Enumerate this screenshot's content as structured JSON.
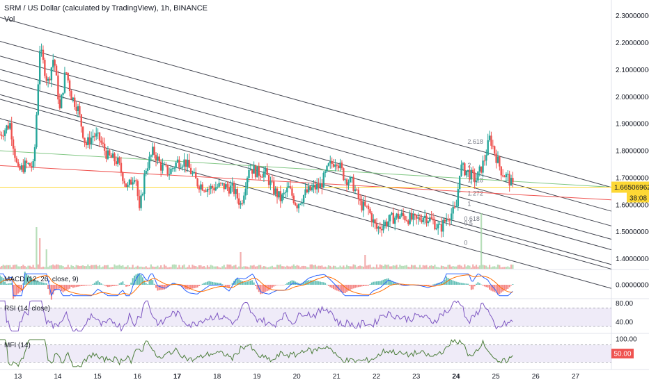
{
  "header": {
    "title": "SRM / US Dollar (calculated by TradingView), 1h, BINANCE",
    "vol_label": "Vol"
  },
  "panes": {
    "macd": "MACD (12, 26, close, 9)",
    "rsi": "RSI (14, close)",
    "mfi": "MFI (14)"
  },
  "chart_data": {
    "type": "candlestick",
    "symbol": "SRM / US Dollar",
    "interval": "1h",
    "exchange": "BINANCE",
    "price_axis": {
      "ticks": [
        "2.30000000",
        "2.20000000",
        "2.10000000",
        "2.00000000",
        "1.90000000",
        "1.80000000",
        "1.70000000",
        "1.60000000",
        "1.50000000",
        "1.40000000"
      ],
      "range": [
        1.355,
        2.325
      ]
    },
    "time_axis": {
      "ticks": [
        {
          "label": "13",
          "day": 13,
          "bold": false
        },
        {
          "label": "14",
          "day": 14,
          "bold": false
        },
        {
          "label": "15",
          "day": 15,
          "bold": false
        },
        {
          "label": "16",
          "day": 16,
          "bold": false
        },
        {
          "label": "17",
          "day": 17,
          "bold": true
        },
        {
          "label": "18",
          "day": 18,
          "bold": false
        },
        {
          "label": "19",
          "day": 19,
          "bold": false
        },
        {
          "label": "20",
          "day": 20,
          "bold": false
        },
        {
          "label": "21",
          "day": 21,
          "bold": false
        },
        {
          "label": "22",
          "day": 22,
          "bold": false
        },
        {
          "label": "23",
          "day": 23,
          "bold": false
        },
        {
          "label": "24",
          "day": 24,
          "bold": true
        },
        {
          "label": "25",
          "day": 25,
          "bold": false
        },
        {
          "label": "26",
          "day": 26,
          "bold": false
        },
        {
          "label": "27",
          "day": 27,
          "bold": false
        }
      ],
      "range_days": [
        12.55,
        27.9
      ]
    },
    "current_price": "1.66506962",
    "countdown": "38:08",
    "colors": {
      "up": "#26a69a",
      "down": "#ef5350",
      "channel": "#434651",
      "green_line": "#81c784",
      "red_line": "#ef5350",
      "yellow_line": "#fdd835",
      "macd": "#2962ff",
      "signal": "#ff6d00",
      "rsi": "#7e57c2",
      "mfi": "#4b7d3a"
    },
    "fib_channel": [
      {
        "label": "2.618",
        "lvl": 2.618
      },
      {
        "label": "2",
        "lvl": 2
      },
      {
        "label": "1.618",
        "lvl": 1.618
      },
      {
        "label": "1.272",
        "lvl": 1.272
      },
      {
        "label": "1",
        "lvl": 1
      },
      {
        "label": "0.618",
        "lvl": 0.618
      },
      {
        "label": "0.5",
        "lvl": 0.5
      },
      {
        "label": "0",
        "lvl": 0
      }
    ],
    "close_path": [
      [
        12.55,
        1.86
      ],
      [
        12.8,
        1.9
      ],
      [
        13.0,
        1.72
      ],
      [
        13.2,
        1.75
      ],
      [
        13.4,
        1.74
      ],
      [
        13.55,
        2.18
      ],
      [
        13.75,
        2.05
      ],
      [
        13.9,
        2.15
      ],
      [
        14.05,
        1.95
      ],
      [
        14.2,
        2.1
      ],
      [
        14.35,
        2.0
      ],
      [
        14.5,
        1.96
      ],
      [
        14.7,
        1.82
      ],
      [
        14.9,
        1.86
      ],
      [
        15.05,
        1.84
      ],
      [
        15.25,
        1.78
      ],
      [
        15.5,
        1.76
      ],
      [
        15.75,
        1.66
      ],
      [
        15.95,
        1.72
      ],
      [
        16.05,
        1.57
      ],
      [
        16.2,
        1.73
      ],
      [
        16.4,
        1.8
      ],
      [
        16.6,
        1.74
      ],
      [
        16.8,
        1.72
      ],
      [
        17.0,
        1.76
      ],
      [
        17.2,
        1.76
      ],
      [
        17.5,
        1.68
      ],
      [
        17.8,
        1.66
      ],
      [
        18.1,
        1.67
      ],
      [
        18.4,
        1.66
      ],
      [
        18.6,
        1.6
      ],
      [
        18.8,
        1.74
      ],
      [
        19.0,
        1.72
      ],
      [
        19.2,
        1.72
      ],
      [
        19.4,
        1.66
      ],
      [
        19.6,
        1.62
      ],
      [
        19.8,
        1.66
      ],
      [
        20.0,
        1.6
      ],
      [
        20.2,
        1.64
      ],
      [
        20.4,
        1.66
      ],
      [
        20.6,
        1.67
      ],
      [
        20.8,
        1.74
      ],
      [
        21.0,
        1.77
      ],
      [
        21.2,
        1.7
      ],
      [
        21.4,
        1.68
      ],
      [
        21.6,
        1.6
      ],
      [
        21.8,
        1.58
      ],
      [
        22.0,
        1.51
      ],
      [
        22.2,
        1.53
      ],
      [
        22.4,
        1.55
      ],
      [
        22.6,
        1.56
      ],
      [
        22.8,
        1.55
      ],
      [
        23.0,
        1.54
      ],
      [
        23.2,
        1.56
      ],
      [
        23.4,
        1.54
      ],
      [
        23.6,
        1.51
      ],
      [
        23.8,
        1.56
      ],
      [
        24.0,
        1.58
      ],
      [
        24.1,
        1.74
      ],
      [
        24.3,
        1.72
      ],
      [
        24.5,
        1.69
      ],
      [
        24.7,
        1.76
      ],
      [
        24.85,
        1.85
      ],
      [
        25.0,
        1.78
      ],
      [
        25.15,
        1.72
      ],
      [
        25.3,
        1.7
      ],
      [
        25.45,
        1.66
      ]
    ],
    "volume_spikes": [
      {
        "day": 13.45,
        "v": 0.75
      },
      {
        "day": 13.55,
        "v": 0.55
      },
      {
        "day": 13.7,
        "v": 0.35
      },
      {
        "day": 18.6,
        "v": 0.3
      },
      {
        "day": 21.7,
        "v": 0.25
      },
      {
        "day": 24.65,
        "v": 1.0
      },
      {
        "day": 24.2,
        "v": 0.08
      }
    ],
    "macd": {
      "range": [
        -0.08,
        0.08
      ],
      "ticks": [
        "0.00000000"
      ]
    },
    "rsi": {
      "range": [
        15,
        90
      ],
      "ticks": [
        "80.00",
        "40.00"
      ],
      "band": [
        30,
        70
      ]
    },
    "mfi": {
      "range": [
        0,
        110
      ],
      "ticks": [
        "100.00",
        "50.00"
      ],
      "band": [
        20,
        80
      ],
      "current": "50.00"
    }
  }
}
